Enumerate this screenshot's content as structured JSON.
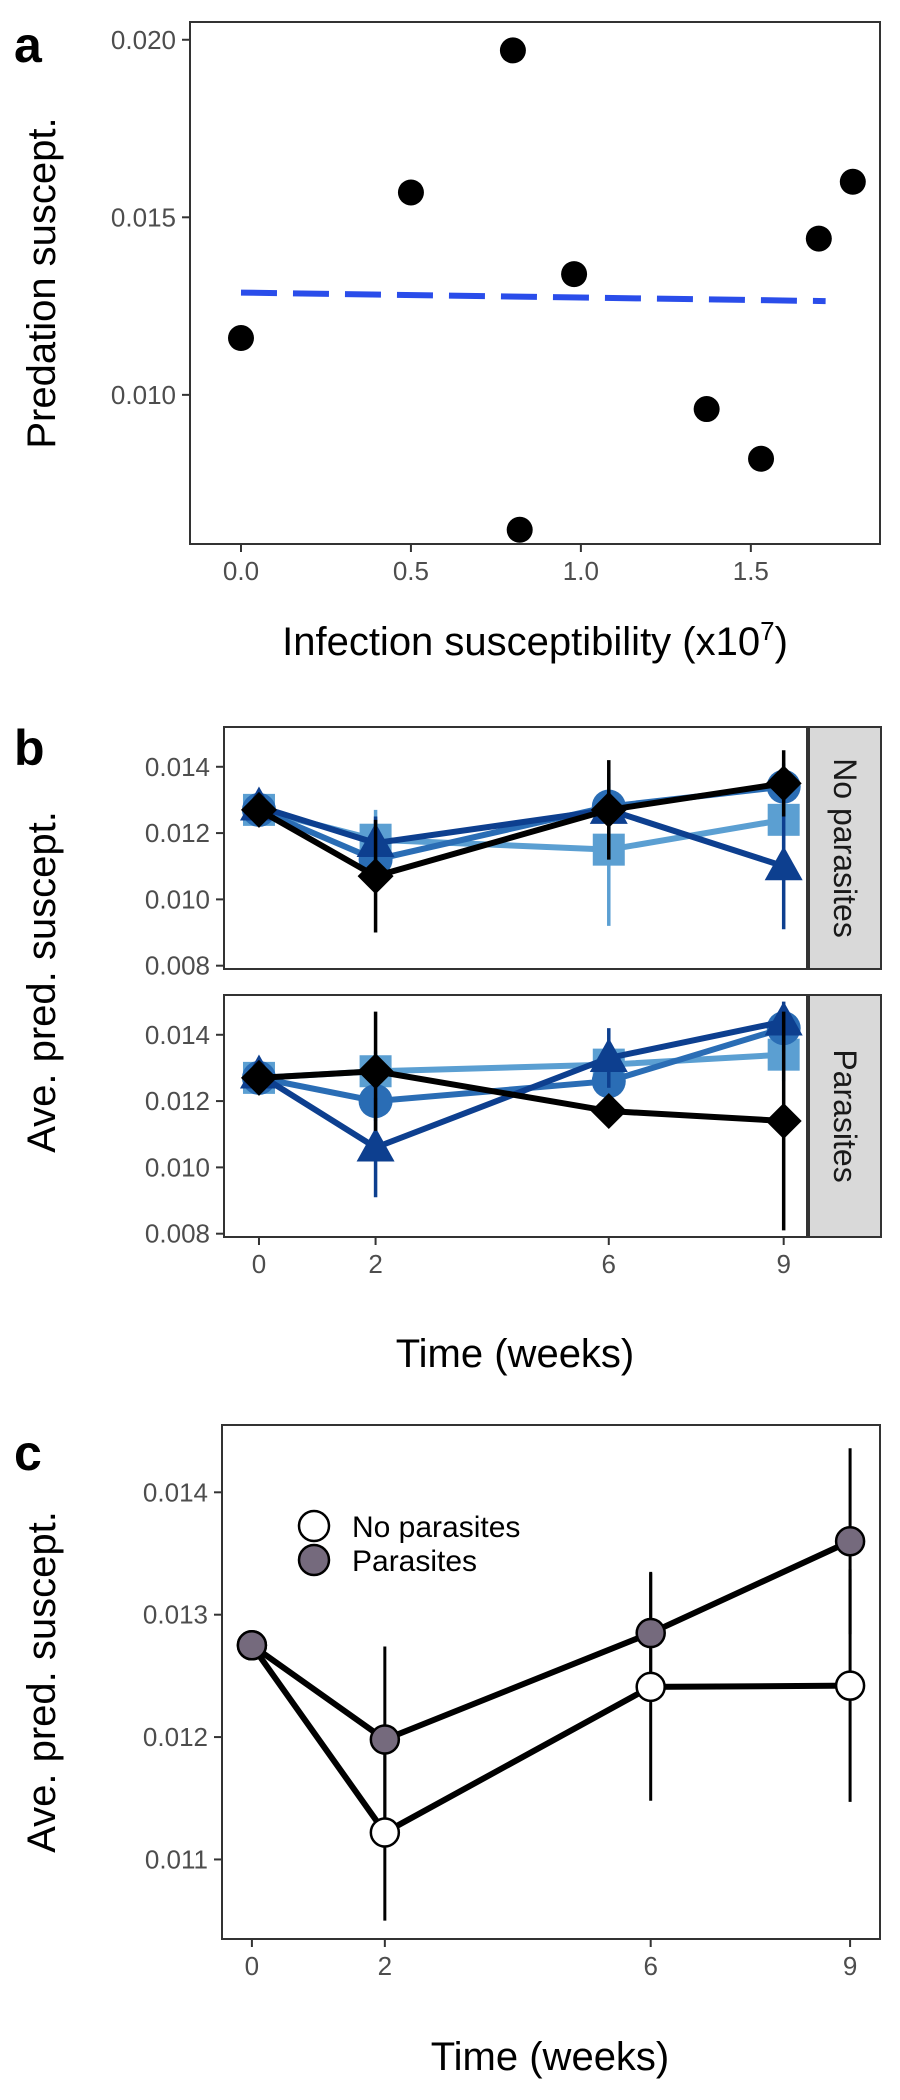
{
  "chart_data": [
    {
      "panel": "a",
      "type": "scatter",
      "xlabel": "Infection susceptibility (x10",
      "xlabel_sup": "7",
      "xlabel_close": ")",
      "ylabel": "Predation suscept.",
      "xlim": [
        -0.15,
        1.88
      ],
      "ylim": [
        0.0058,
        0.0205
      ],
      "xticks": [
        {
          "v": 0.0,
          "label": "0.0"
        },
        {
          "v": 0.5,
          "label": "0.5"
        },
        {
          "v": 1.0,
          "label": "1.0"
        },
        {
          "v": 1.5,
          "label": "1.5"
        }
      ],
      "yticks": [
        {
          "v": 0.01,
          "label": "0.010"
        },
        {
          "v": 0.015,
          "label": "0.015"
        },
        {
          "v": 0.02,
          "label": "0.020"
        }
      ],
      "points": [
        {
          "x": 0.0,
          "y": 0.0116
        },
        {
          "x": 0.5,
          "y": 0.0157
        },
        {
          "x": 0.8,
          "y": 0.0197
        },
        {
          "x": 0.82,
          "y": 0.0062
        },
        {
          "x": 0.98,
          "y": 0.0134
        },
        {
          "x": 1.37,
          "y": 0.0096
        },
        {
          "x": 1.53,
          "y": 0.0082
        },
        {
          "x": 1.7,
          "y": 0.0144
        },
        {
          "x": 1.8,
          "y": 0.016
        }
      ],
      "trend": {
        "x": [
          0.0,
          1.72
        ],
        "y": [
          0.01288,
          0.01264
        ],
        "color": "#2a4dea",
        "style": "dashed"
      },
      "grid": false,
      "point_color": "#000000"
    },
    {
      "panel": "b",
      "type": "line",
      "xlabel": "Time (weeks)",
      "ylabel": "Ave. pred. suscept.",
      "x": [
        0,
        2,
        6,
        9
      ],
      "xticks": [
        {
          "v": 0,
          "label": "0"
        },
        {
          "v": 2,
          "label": "2"
        },
        {
          "v": 6,
          "label": "6"
        },
        {
          "v": 9,
          "label": "9"
        }
      ],
      "xlim": [
        -0.6,
        9.4
      ],
      "ylim": [
        0.0079,
        0.0152
      ],
      "yticks": [
        {
          "v": 0.008,
          "label": "0.008"
        },
        {
          "v": 0.01,
          "label": "0.010"
        },
        {
          "v": 0.012,
          "label": "0.012"
        },
        {
          "v": 0.014,
          "label": "0.014"
        }
      ],
      "facets": [
        {
          "strip": "No parasites",
          "series": [
            {
              "color": "#5b9fd2",
              "marker": "square",
              "values": [
                0.0127,
                0.0118,
                0.0115,
                0.0124
              ],
              "err": [
                0.0001,
                0.0009,
                0.0023,
                0.0011
              ]
            },
            {
              "color": "#2a6db5",
              "marker": "circle",
              "values": [
                0.0127,
                0.0112,
                0.0128,
                0.0134
              ],
              "err": [
                0.0001,
                0.0006,
                0.0007,
                0.0007
              ]
            },
            {
              "color": "#0d3f8f",
              "marker": "triangle",
              "values": [
                0.0128,
                0.0117,
                0.0127,
                0.011
              ],
              "err": [
                0.0001,
                0.0008,
                0.0009,
                0.0019
              ]
            },
            {
              "color": "#000000",
              "marker": "diamond",
              "values": [
                0.0127,
                0.0107,
                0.0127,
                0.0135
              ],
              "err": [
                0.0001,
                0.0017,
                0.0015,
                0.001
              ]
            }
          ]
        },
        {
          "strip": "Parasites",
          "series": [
            {
              "color": "#5b9fd2",
              "marker": "square",
              "values": [
                0.0127,
                0.0129,
                0.0131,
                0.0134
              ],
              "err": [
                0.0001,
                0.0006,
                0.0007,
                0.0008
              ]
            },
            {
              "color": "#2a6db5",
              "marker": "circle",
              "values": [
                0.0127,
                0.012,
                0.0126,
                0.0142
              ],
              "err": [
                0.0001,
                0.0006,
                0.0007,
                0.0007
              ]
            },
            {
              "color": "#0d3f8f",
              "marker": "triangle",
              "values": [
                0.0128,
                0.0106,
                0.0133,
                0.0144
              ],
              "err": [
                0.0001,
                0.0015,
                0.0009,
                0.0006
              ]
            },
            {
              "color": "#000000",
              "marker": "diamond",
              "values": [
                0.0127,
                0.0129,
                0.0117,
                0.0114
              ],
              "err": [
                0.0001,
                0.0018,
                0.0004,
                0.0033
              ]
            }
          ]
        }
      ],
      "strip_fill": "#d9d9d9",
      "grid": false
    },
    {
      "panel": "c",
      "type": "line",
      "xlabel": "Time (weeks)",
      "ylabel": "Ave. pred. suscept.",
      "x": [
        0,
        2,
        6,
        9
      ],
      "xticks": [
        {
          "v": 0,
          "label": "0"
        },
        {
          "v": 2,
          "label": "2"
        },
        {
          "v": 6,
          "label": "6"
        },
        {
          "v": 9,
          "label": "9"
        }
      ],
      "xlim": [
        -0.45,
        9.45
      ],
      "ylim": [
        0.01035,
        0.01455
      ],
      "yticks": [
        {
          "v": 0.011,
          "label": "0.011"
        },
        {
          "v": 0.012,
          "label": "0.012"
        },
        {
          "v": 0.013,
          "label": "0.013"
        },
        {
          "v": 0.014,
          "label": "0.014"
        }
      ],
      "series": [
        {
          "name": "No parasites",
          "fill": "#ffffff",
          "values": [
            0.01275,
            0.01122,
            0.01241,
            0.01242
          ],
          "err": [
            0.0,
            0.00072,
            0.00093,
            0.00095
          ]
        },
        {
          "name": "Parasites",
          "fill": "#756a7d",
          "values": [
            0.01275,
            0.01198,
            0.01285,
            0.0136
          ],
          "err": [
            0.0,
            0.00076,
            0.0005,
            0.00076
          ]
        }
      ],
      "legend_position": "top-left",
      "grid": false
    }
  ]
}
